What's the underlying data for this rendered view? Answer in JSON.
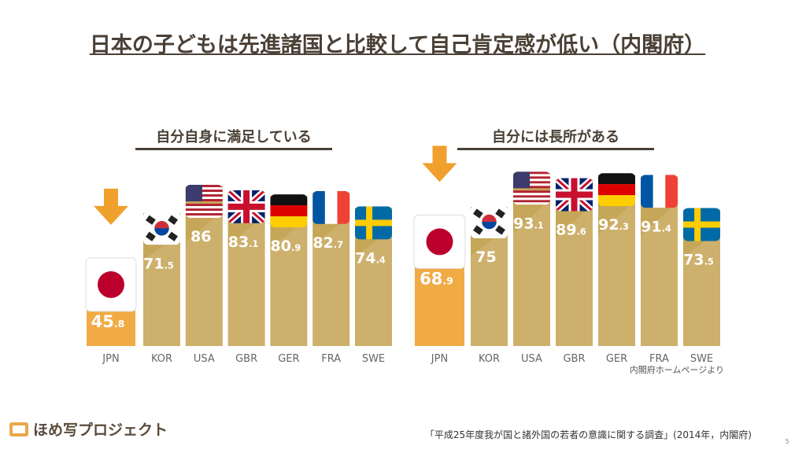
{
  "title": "日本の子どもは先進諸国と比較して自己肯定感が低い（内閣府）",
  "logo": "ほめ写プロジェクト",
  "source_note": "内閣府ホームページより",
  "footer": "「平成25年度我が国と諸外国の若者の意識に関する調査」(2014年，内閣府)",
  "page_number": "5",
  "chart_data": [
    {
      "type": "bar",
      "title": "自分自身に満足している",
      "categories": [
        "JPN",
        "KOR",
        "USA",
        "GBR",
        "GER",
        "FRA",
        "SWE"
      ],
      "values": [
        45.8,
        71.5,
        86.0,
        83.1,
        80.9,
        82.7,
        74.4
      ],
      "value_labels": [
        "45.8%",
        "71.5%",
        "86.0%",
        "83.1%",
        "80.9%",
        "82.7%",
        "74.4%"
      ],
      "colors": [
        "#f0a02c",
        "#c6a658",
        "#c6a658",
        "#c6a658",
        "#c6a658",
        "#c6a658",
        "#c6a658"
      ]
    },
    {
      "type": "bar",
      "title": "自分には長所がある",
      "categories": [
        "JPN",
        "KOR",
        "USA",
        "GBR",
        "GER",
        "FRA",
        "SWE"
      ],
      "values": [
        68.9,
        75.0,
        93.1,
        89.6,
        92.3,
        91.4,
        73.5
      ],
      "value_labels": [
        "68.9%",
        "75.0%",
        "93.1%",
        "89.6%",
        "92.3%",
        "91.4%",
        "73.5%"
      ],
      "colors": [
        "#f0a02c",
        "#c6a658",
        "#c6a658",
        "#c6a658",
        "#c6a658",
        "#c6a658",
        "#c6a658"
      ]
    }
  ]
}
